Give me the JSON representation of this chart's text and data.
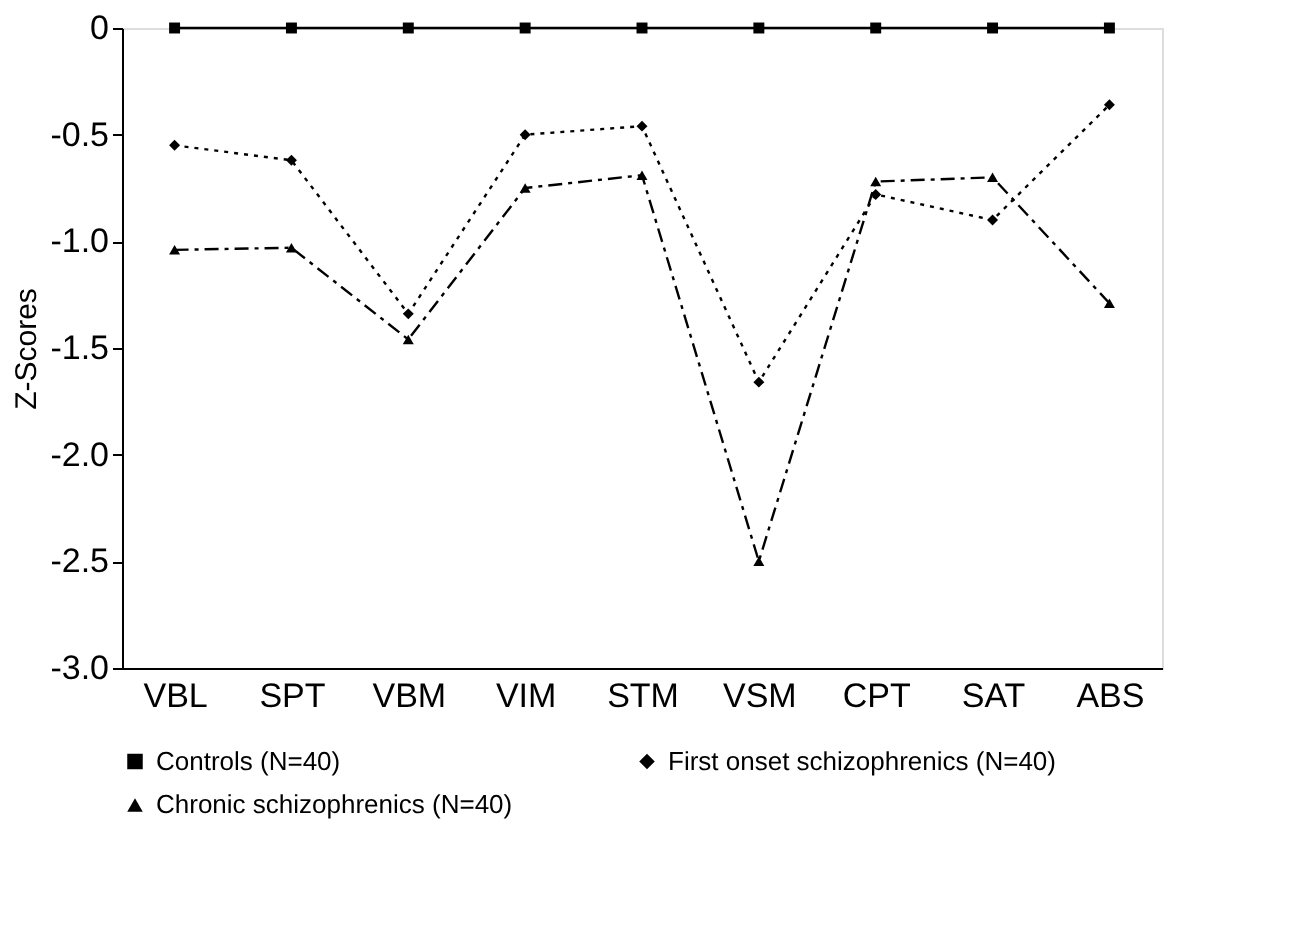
{
  "chart_data": {
    "type": "line",
    "ylabel": "Z-Scores",
    "categories": [
      "VBL",
      "SPT",
      "VBM",
      "VIM",
      "STM",
      "VSM",
      "CPT",
      "SAT",
      "ABS"
    ],
    "series": [
      {
        "name": "Controls (N=40)",
        "color": "#000000",
        "marker": "square",
        "line_style": "solid",
        "values": [
          0,
          0,
          0,
          0,
          0,
          0,
          0,
          0,
          0
        ]
      },
      {
        "name": "First onset schizophrenics (N=40)",
        "color": "#000000",
        "marker": "diamond",
        "line_style": "dotted",
        "values": [
          -0.55,
          -0.62,
          -1.34,
          -0.5,
          -0.46,
          -1.66,
          -0.78,
          -0.9,
          -0.36
        ]
      },
      {
        "name": "Chronic schizophrenics (N=40)",
        "color": "#000000",
        "marker": "triangle",
        "line_style": "dashed",
        "values": [
          -1.04,
          -1.03,
          -1.46,
          -0.75,
          -0.69,
          -2.5,
          -0.72,
          -0.7,
          -1.29
        ]
      }
    ],
    "ylim": [
      -3.0,
      0
    ],
    "yticks": [
      {
        "value": 0,
        "label": "0"
      },
      {
        "value": -0.5,
        "label": "-0.5"
      },
      {
        "value": -1.0,
        "label": "-1.0"
      },
      {
        "value": -1.5,
        "label": "-1.5"
      },
      {
        "value": -2.0,
        "label": "-2.0"
      },
      {
        "value": -2.5,
        "label": "-2.5"
      },
      {
        "value": -3.0,
        "label": "-3.0"
      }
    ],
    "grid": false,
    "legend": "bottom"
  }
}
